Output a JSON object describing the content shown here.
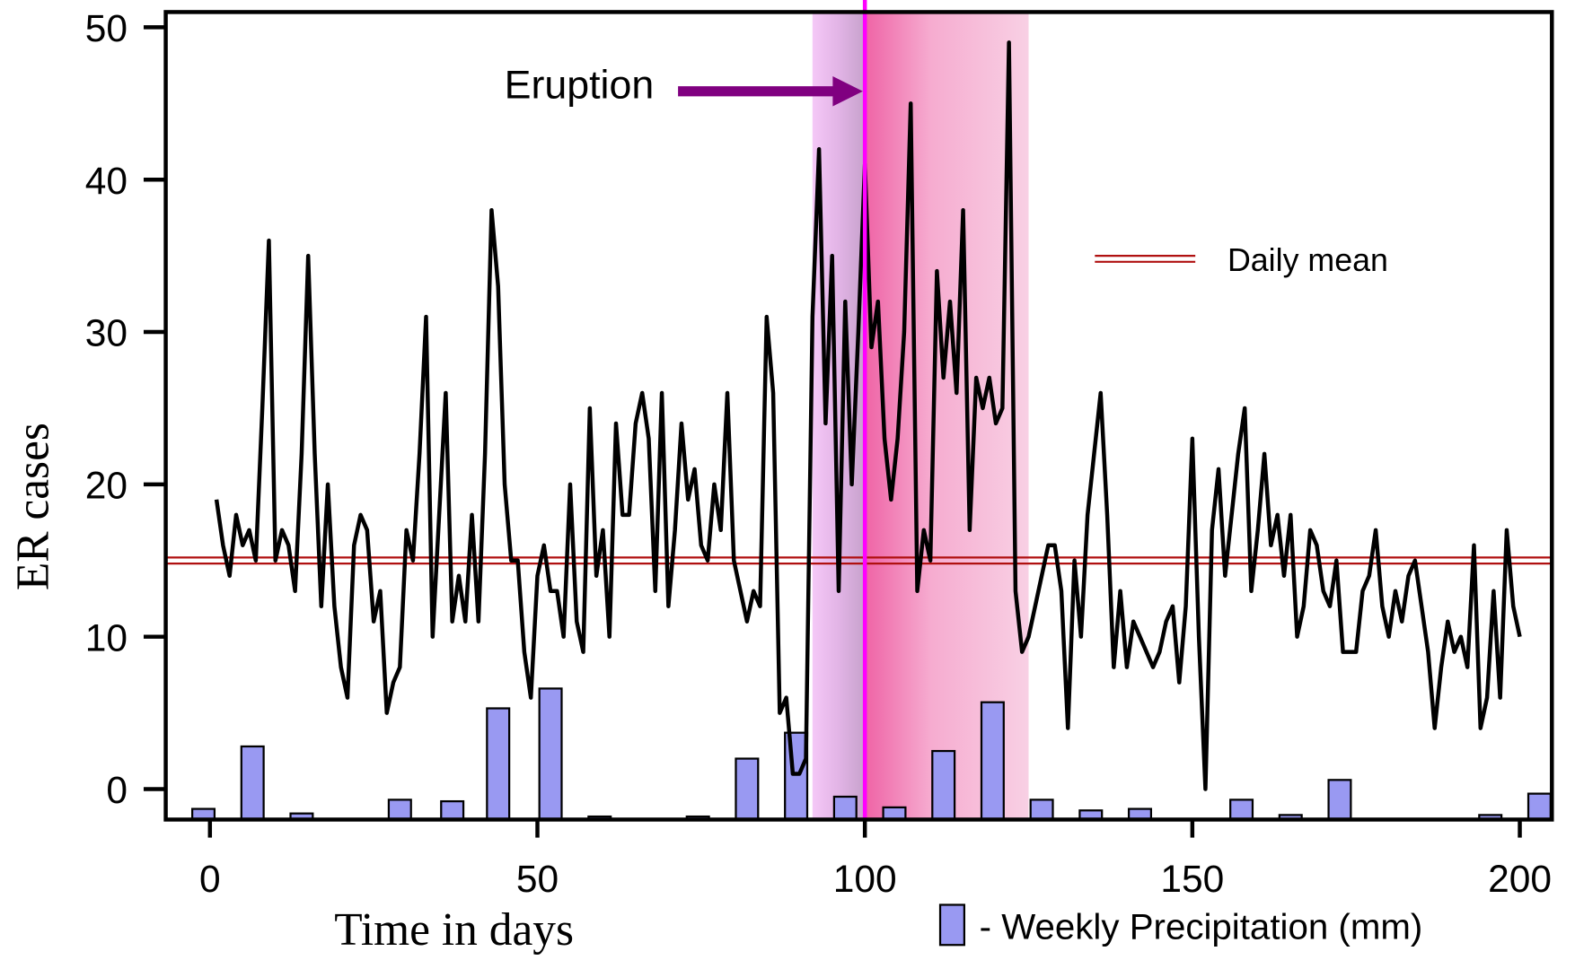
{
  "chart_data": {
    "type": "line",
    "y_label": "ER cases",
    "x_label": "Time in days",
    "xlim": [
      -6.75,
      204.9
    ],
    "ylim": [
      -2,
      51
    ],
    "xticks": [
      0,
      50,
      100,
      150,
      200
    ],
    "yticks": [
      0,
      10,
      20,
      30,
      40,
      50
    ],
    "line": {
      "color": "#000000",
      "x": [
        1,
        2,
        3,
        4,
        5,
        6,
        7,
        8,
        9,
        10,
        11,
        12,
        13,
        14,
        15,
        16,
        17,
        18,
        19,
        20,
        21,
        22,
        23,
        24,
        25,
        26,
        27,
        28,
        29,
        30,
        31,
        32,
        33,
        34,
        35,
        36,
        37,
        38,
        39,
        40,
        41,
        42,
        43,
        44,
        45,
        46,
        47,
        48,
        49,
        50,
        51,
        52,
        53,
        54,
        55,
        56,
        57,
        58,
        59,
        60,
        61,
        62,
        63,
        64,
        65,
        66,
        67,
        68,
        69,
        70,
        71,
        72,
        73,
        74,
        75,
        76,
        77,
        78,
        79,
        80,
        81,
        82,
        83,
        84,
        85,
        86,
        87,
        88,
        89,
        90,
        91,
        92,
        93,
        94,
        95,
        96,
        97,
        98,
        99,
        100,
        101,
        102,
        103,
        104,
        105,
        106,
        107,
        108,
        109,
        110,
        111,
        112,
        113,
        114,
        115,
        116,
        117,
        118,
        119,
        120,
        121,
        122,
        123,
        124,
        125,
        126,
        127,
        128,
        129,
        130,
        131,
        132,
        133,
        134,
        135,
        136,
        137,
        138,
        139,
        140,
        141,
        142,
        143,
        144,
        145,
        146,
        147,
        148,
        149,
        150,
        151,
        152,
        153,
        154,
        155,
        156,
        157,
        158,
        159,
        160,
        161,
        162,
        163,
        164,
        165,
        166,
        167,
        168,
        169,
        170,
        171,
        172,
        173,
        174,
        175,
        176,
        177,
        178,
        179,
        180,
        181,
        182,
        183,
        184,
        185,
        186,
        187,
        188,
        189,
        190,
        191,
        192,
        193,
        194,
        195,
        196,
        197,
        198,
        199,
        200
      ],
      "values": [
        19,
        16,
        14,
        18,
        16,
        17,
        15,
        25,
        36,
        15,
        17,
        16,
        13,
        22,
        35,
        22,
        12,
        20,
        12,
        8,
        6,
        16,
        18,
        17,
        11,
        13,
        5,
        7,
        8,
        17,
        15,
        22,
        31,
        10,
        18,
        26,
        11,
        14,
        11,
        18,
        11,
        22,
        38,
        33,
        20,
        15,
        15,
        9,
        6,
        14,
        16,
        13,
        13,
        10,
        20,
        11,
        9,
        25,
        14,
        17,
        10,
        24,
        18,
        18,
        24,
        26,
        23,
        13,
        26,
        12,
        17,
        24,
        19,
        21,
        16,
        15,
        20,
        17,
        26,
        15,
        13,
        11,
        13,
        12,
        31,
        26,
        5,
        6,
        1,
        1,
        2,
        31,
        42,
        24,
        35,
        13,
        32,
        20,
        30,
        41,
        29,
        32,
        23,
        19,
        23,
        30,
        45,
        13,
        17,
        15,
        34,
        27,
        32,
        26,
        38,
        17,
        27,
        25,
        27,
        24,
        25,
        49,
        13,
        9,
        10,
        12,
        14,
        16,
        16,
        13,
        4,
        15,
        10,
        18,
        22,
        26,
        18,
        8,
        13,
        8,
        11,
        10,
        9,
        8,
        9,
        11,
        12,
        7,
        12,
        23,
        10,
        0,
        17,
        21,
        14,
        18,
        22,
        25,
        13,
        17,
        22,
        16,
        18,
        14,
        18,
        10,
        12,
        17,
        16,
        13,
        12,
        15,
        9,
        9,
        9,
        13,
        14,
        17,
        12,
        10,
        13,
        11,
        14,
        15,
        12,
        9,
        4,
        8,
        11,
        9,
        10,
        8,
        16,
        4,
        6,
        13,
        6,
        17,
        12,
        10
      ]
    },
    "mean": {
      "name": "Daily mean",
      "value": 15,
      "color": "#b01010"
    },
    "precipitation": {
      "name": "- Weekly Precipitation (mm)",
      "color": "#9999f2",
      "x": [
        -1,
        6.5,
        14,
        29,
        37,
        44,
        52,
        59.5,
        74.5,
        82,
        89.5,
        97,
        104.5,
        112,
        119.5,
        127,
        134.5,
        142,
        157.5,
        165,
        172.5,
        195.5,
        203
      ],
      "values": [
        -1.3,
        2.8,
        -1.6,
        -0.7,
        -0.8,
        5.3,
        6.6,
        -1.8,
        -1.8,
        2.0,
        3.7,
        -0.5,
        -1.2,
        2.5,
        5.7,
        -0.7,
        -1.4,
        -1.3,
        -0.7,
        -1.7,
        0.6,
        -1.7,
        -0.3
      ]
    },
    "eruption": {
      "label": "Eruption",
      "x": 100,
      "y": 45.8,
      "color": "#ff00ff",
      "arrow_color": "#800080"
    },
    "shade": [
      92,
      125
    ]
  }
}
